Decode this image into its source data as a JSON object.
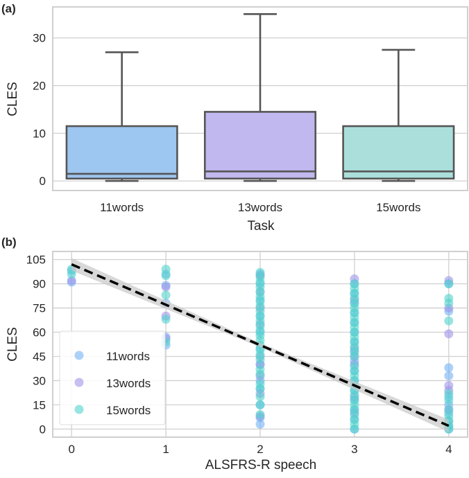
{
  "chart_data": [
    {
      "panel_label": "(a)",
      "type": "box",
      "xlabel": "Task",
      "ylabel": "CLES",
      "ylim": [
        -2,
        36.5
      ],
      "yticks": [
        0,
        10,
        20,
        30
      ],
      "grid": true,
      "categories": [
        "11words",
        "13words",
        "15words"
      ],
      "boxes": [
        {
          "min": 0,
          "q1": 0.5,
          "median": 1.5,
          "q3": 11.5,
          "max": 27,
          "color": "#9dc6f0"
        },
        {
          "min": 0,
          "q1": 0.5,
          "median": 2,
          "q3": 14.5,
          "max": 35,
          "color": "#c0b8ee"
        },
        {
          "min": 0,
          "q1": 0.5,
          "median": 2,
          "q3": 11.5,
          "max": 27.5,
          "color": "#abdfdb"
        }
      ]
    },
    {
      "panel_label": "(b)",
      "type": "scatter",
      "xlabel": "ALSFRS-R speech",
      "ylabel": "CLES",
      "xlim": [
        -0.2,
        4.2
      ],
      "ylim": [
        -5,
        110
      ],
      "xticks": [
        0,
        1,
        2,
        3,
        4
      ],
      "yticks": [
        0,
        15,
        30,
        45,
        60,
        75,
        90,
        105
      ],
      "grid": true,
      "legend_position": "lower-left",
      "series": [
        {
          "name": "11words",
          "color": "#74b3f5",
          "points": [
            [
              0,
              98
            ],
            [
              0,
              91
            ],
            [
              1,
              96
            ],
            [
              1,
              89
            ],
            [
              1,
              78
            ],
            [
              1,
              57
            ],
            [
              1,
              52
            ],
            [
              2,
              96
            ],
            [
              2,
              90
            ],
            [
              2,
              80
            ],
            [
              2,
              70
            ],
            [
              2,
              60
            ],
            [
              2,
              50
            ],
            [
              2,
              40
            ],
            [
              2,
              30
            ],
            [
              2,
              25
            ],
            [
              2,
              15
            ],
            [
              2,
              7
            ],
            [
              2,
              3
            ],
            [
              3,
              90
            ],
            [
              3,
              84
            ],
            [
              3,
              78
            ],
            [
              3,
              72
            ],
            [
              3,
              66
            ],
            [
              3,
              60
            ],
            [
              3,
              54
            ],
            [
              3,
              48
            ],
            [
              3,
              42
            ],
            [
              3,
              36
            ],
            [
              3,
              30
            ],
            [
              3,
              24
            ],
            [
              3,
              18
            ],
            [
              3,
              12
            ],
            [
              3,
              6
            ],
            [
              3,
              0
            ],
            [
              4,
              90
            ],
            [
              4,
              73
            ],
            [
              4,
              38
            ],
            [
              4,
              33
            ],
            [
              4,
              20
            ],
            [
              4,
              15
            ],
            [
              4,
              10
            ],
            [
              4,
              5
            ],
            [
              4,
              2
            ],
            [
              4,
              0
            ]
          ]
        },
        {
          "name": "13words",
          "color": "#9f95ea",
          "points": [
            [
              0,
              92
            ],
            [
              1,
              88
            ],
            [
              1,
              70
            ],
            [
              1,
              56
            ],
            [
              2,
              95
            ],
            [
              2,
              85
            ],
            [
              2,
              75
            ],
            [
              2,
              65
            ],
            [
              2,
              45
            ],
            [
              2,
              40
            ],
            [
              2,
              33
            ],
            [
              2,
              22
            ],
            [
              2,
              8
            ],
            [
              3,
              93
            ],
            [
              3,
              80
            ],
            [
              3,
              50
            ],
            [
              3,
              45
            ],
            [
              3,
              40
            ],
            [
              3,
              20
            ],
            [
              3,
              10
            ],
            [
              4,
              92
            ],
            [
              4,
              75
            ],
            [
              4,
              59
            ],
            [
              4,
              27
            ],
            [
              4,
              24
            ],
            [
              4,
              12
            ]
          ]
        },
        {
          "name": "15words",
          "color": "#52d4cc",
          "points": [
            [
              0,
              99
            ],
            [
              0,
              96
            ],
            [
              1,
              99
            ],
            [
              1,
              95
            ],
            [
              1,
              83
            ],
            [
              1,
              68
            ],
            [
              1,
              54
            ],
            [
              2,
              97
            ],
            [
              2,
              94
            ],
            [
              2,
              91
            ],
            [
              2,
              88
            ],
            [
              2,
              85
            ],
            [
              2,
              82
            ],
            [
              2,
              79
            ],
            [
              2,
              76
            ],
            [
              2,
              73
            ],
            [
              2,
              70
            ],
            [
              2,
              67
            ],
            [
              2,
              64
            ],
            [
              2,
              61
            ],
            [
              2,
              58
            ],
            [
              2,
              55
            ],
            [
              2,
              52
            ],
            [
              2,
              49
            ],
            [
              2,
              46
            ],
            [
              2,
              43
            ],
            [
              2,
              37
            ],
            [
              2,
              34
            ],
            [
              2,
              28
            ],
            [
              2,
              25
            ],
            [
              2,
              20
            ],
            [
              2,
              15
            ],
            [
              2,
              9
            ],
            [
              3,
              90
            ],
            [
              3,
              87
            ],
            [
              3,
              84
            ],
            [
              3,
              81
            ],
            [
              3,
              78
            ],
            [
              3,
              75
            ],
            [
              3,
              72
            ],
            [
              3,
              69
            ],
            [
              3,
              66
            ],
            [
              3,
              63
            ],
            [
              3,
              60
            ],
            [
              3,
              57
            ],
            [
              3,
              54
            ],
            [
              3,
              51
            ],
            [
              3,
              48
            ],
            [
              3,
              45
            ],
            [
              3,
              39
            ],
            [
              3,
              36
            ],
            [
              3,
              33
            ],
            [
              3,
              30
            ],
            [
              3,
              27
            ],
            [
              3,
              24
            ],
            [
              3,
              21
            ],
            [
              3,
              18
            ],
            [
              3,
              15
            ],
            [
              3,
              12
            ],
            [
              3,
              9
            ],
            [
              3,
              6
            ],
            [
              3,
              3
            ],
            [
              3,
              0
            ],
            [
              4,
              90
            ],
            [
              4,
              81
            ],
            [
              4,
              78
            ],
            [
              4,
              67
            ],
            [
              4,
              22
            ],
            [
              4,
              18
            ],
            [
              4,
              12
            ],
            [
              4,
              8
            ],
            [
              4,
              5
            ],
            [
              4,
              2
            ],
            [
              4,
              0
            ]
          ]
        }
      ],
      "regression": {
        "x": [
          0,
          4
        ],
        "y": [
          102,
          2
        ],
        "style": "dashed",
        "color": "#000000",
        "ci_color": "#c8c8c8"
      }
    }
  ]
}
